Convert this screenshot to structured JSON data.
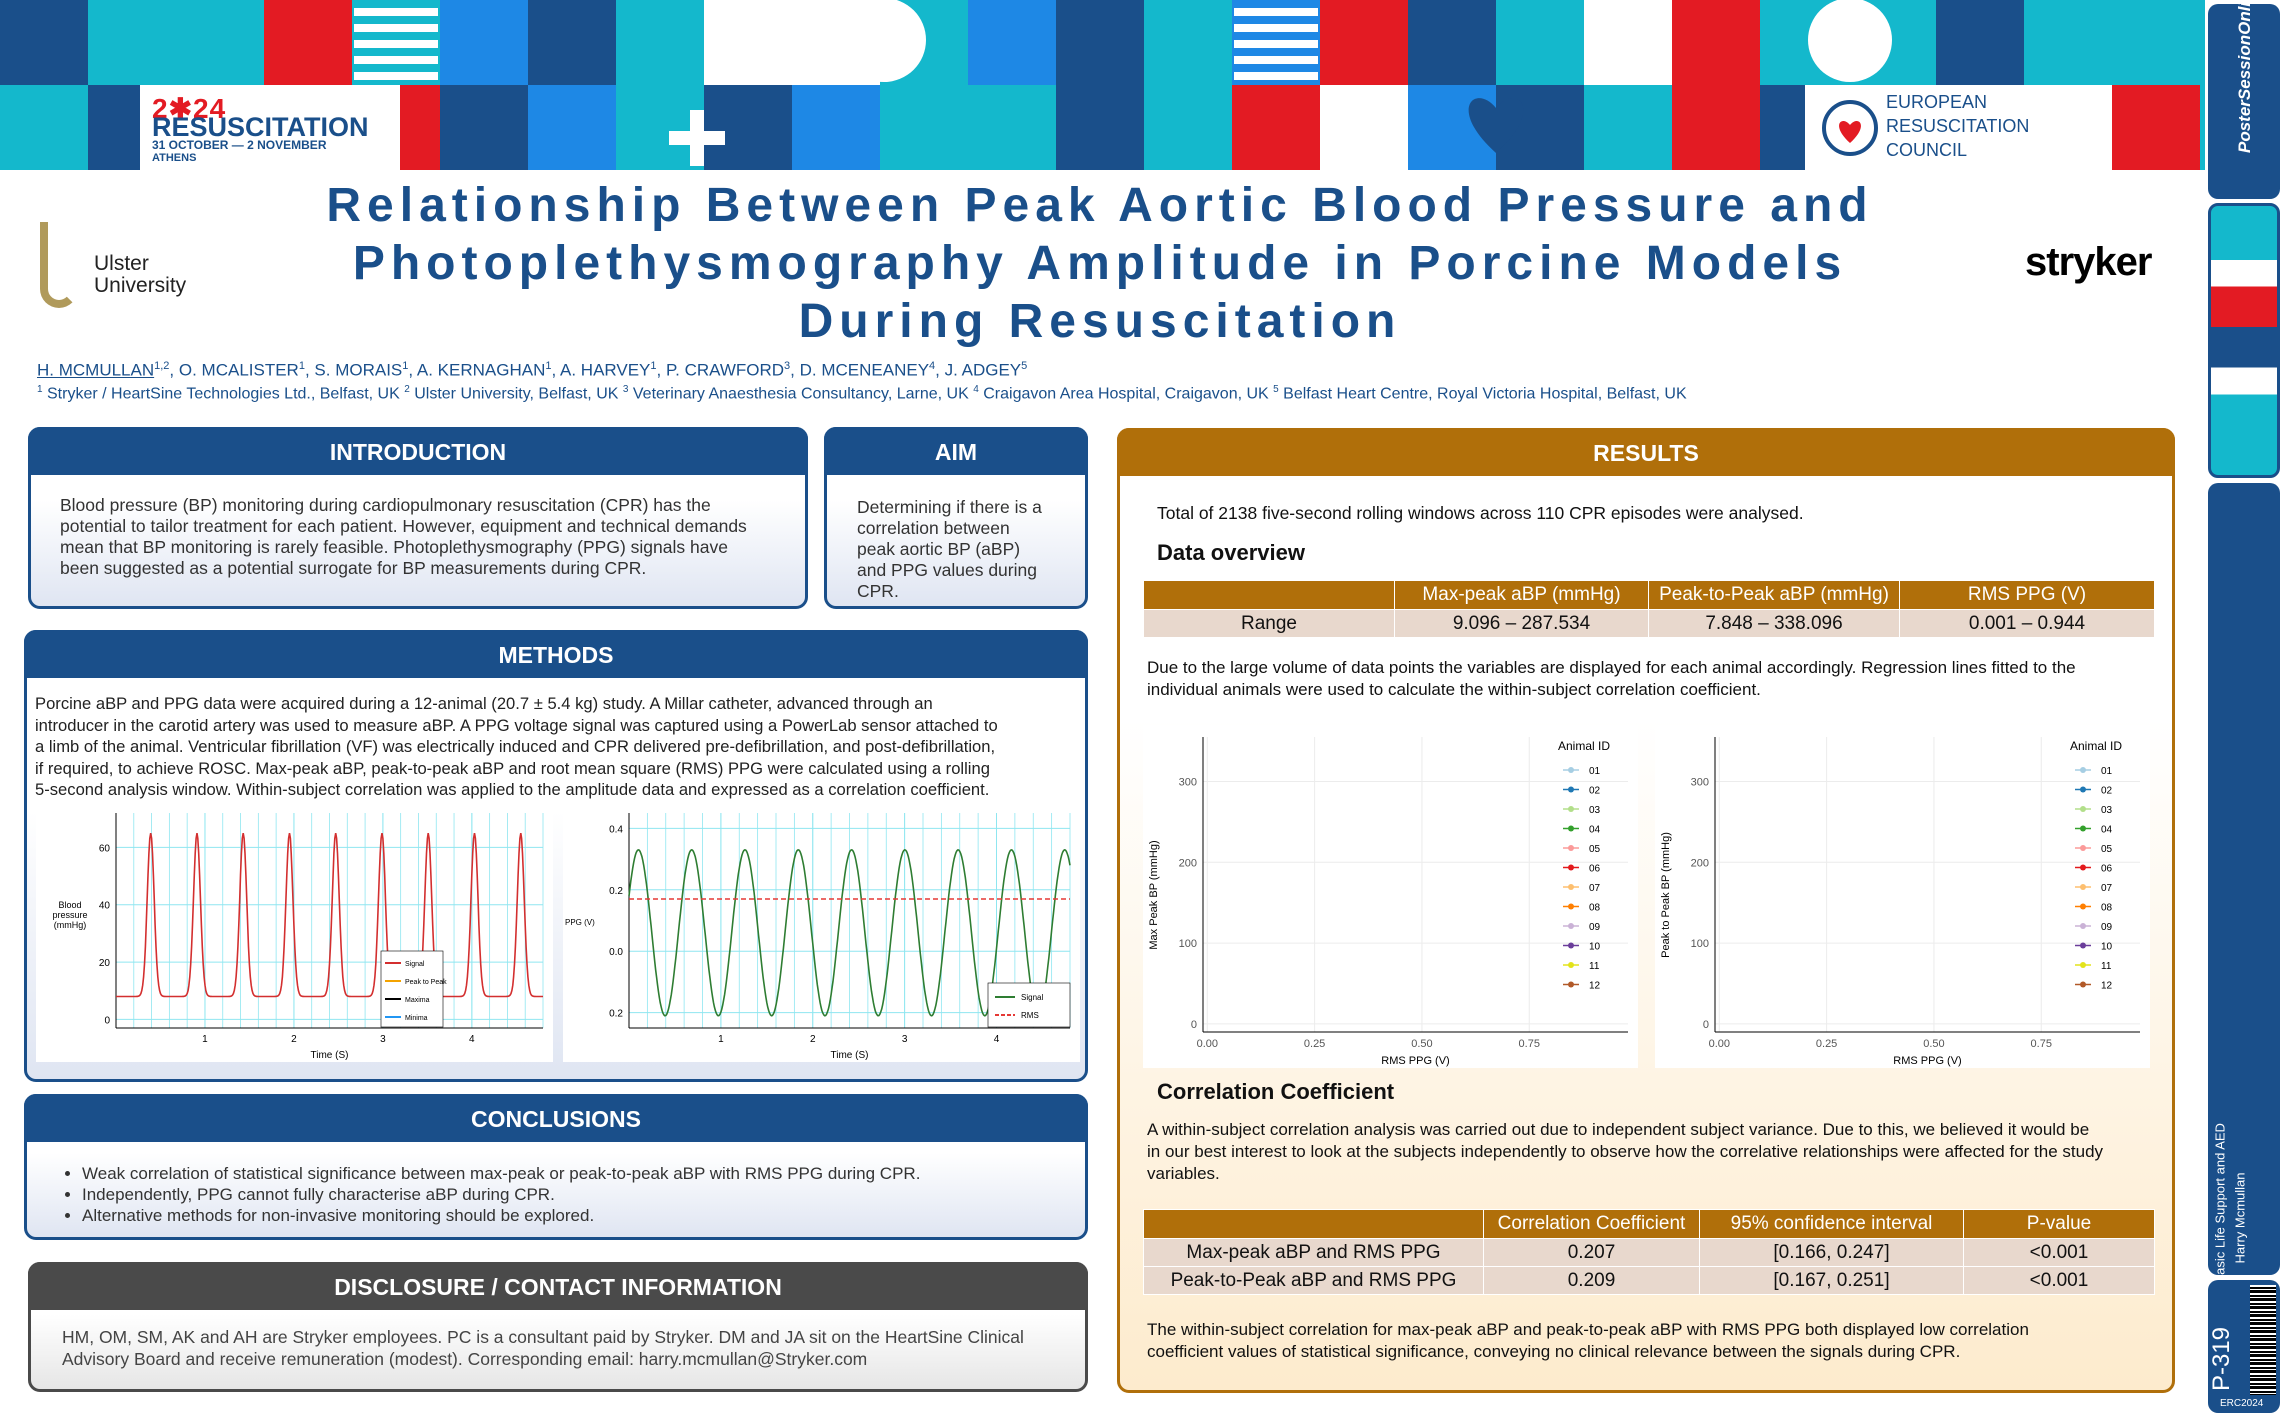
{
  "banner": {
    "event_year": "2✱24",
    "event_name": "RESUSCITATION",
    "event_dates": "31 OCTOBER — 2 NOVEMBER",
    "event_city": "ATHENS",
    "org_name": [
      "EUROPEAN",
      "RESUSCITATION",
      "COUNCIL"
    ]
  },
  "header": {
    "title_lines": [
      "Relationship Between Peak Aortic Blood Pressure and",
      "Photoplethysmography Amplitude in Porcine Models",
      "During Resuscitation"
    ],
    "left_logo": [
      "Ulster",
      "University"
    ],
    "right_logo": "stryker",
    "authors": [
      {
        "text": "H. MCMULLAN",
        "sup": "1,2"
      },
      {
        "text": ", O. MCALISTER",
        "sup": "1"
      },
      {
        "text": ", S. MORAIS",
        "sup": "1"
      },
      {
        "text": ", A. KERNAGHAN",
        "sup": "1"
      },
      {
        "text": ", A. HARVEY",
        "sup": "1"
      },
      {
        "text": ", P. CRAWFORD",
        "sup": "3"
      },
      {
        "text": ", D. MCENEANEY",
        "sup": "4"
      },
      {
        "text": ", J. ADGEY",
        "sup": "5"
      }
    ],
    "affiliations": [
      {
        "sup": "1",
        "text": " Stryker / HeartSine Technologies Ltd., Belfast, UK "
      },
      {
        "sup": "2",
        "text": " Ulster University, Belfast, UK "
      },
      {
        "sup": "3",
        "text": " Veterinary Anaesthesia Consultancy, Larne, UK "
      },
      {
        "sup": "4",
        "text": " Craigavon Area Hospital, Craigavon, UK "
      },
      {
        "sup": "5",
        "text": " Belfast Heart Centre, Royal Victoria Hospital, Belfast, UK"
      }
    ]
  },
  "sidebar": {
    "site": "PosterSessionOnline",
    "topic": "Basic Life Support and AED",
    "presenter": "Harry Mcmullan",
    "poster_id": "P-319",
    "event_code": "ERC2024"
  },
  "introduction": {
    "heading": "INTRODUCTION",
    "lines": [
      "Blood pressure (BP) monitoring during cardiopulmonary resuscitation (CPR) has the",
      "potential to tailor treatment for each patient. However, equipment and technical demands",
      "mean that BP monitoring is rarely feasible. Photoplethysmography (PPG) signals have",
      "been suggested as a potential surrogate for BP measurements during CPR."
    ]
  },
  "aim": {
    "heading": "AIM",
    "lines": [
      "Determining if there is a",
      "correlation between",
      "peak aortic BP (aBP)",
      "and PPG values during",
      "CPR."
    ]
  },
  "methods": {
    "heading": "METHODS",
    "lines": [
      "Porcine aBP and PPG data were acquired during a 12-animal (20.7 ± 5.4 kg) study. A Millar catheter, advanced through an",
      "introducer in the carotid artery was used to measure aBP. A PPG voltage signal was captured using a PowerLab sensor attached to",
      "a limb of the animal. Ventricular fibrillation (VF) was electrically induced and CPR delivered pre-defibrillation, and post-defibrillation,",
      "if required, to achieve ROSC. Max-peak aBP, peak-to-peak aBP and root mean square (RMS) PPG were calculated using a rolling",
      "5-second analysis window. Within-subject correlation was applied to the amplitude data and expressed as a correlation coefficient."
    ],
    "bp_plot": {
      "ylabel": "Blood pressure (mmHg)",
      "xlabel": "Time (S)",
      "ylim": [
        -3,
        72
      ],
      "yticks": [
        0,
        20,
        40,
        60
      ],
      "xlim": [
        0,
        4.8
      ],
      "xticks": [
        1,
        2,
        3,
        4
      ],
      "grid": true,
      "legend": [
        "Signal",
        "Peak to Peak",
        "Maxima",
        "Minima"
      ]
    },
    "ppg_plot": {
      "ylabel": "PPG (V)",
      "xlabel": "Time (S)",
      "ylim": [
        -0.25,
        0.45
      ],
      "yticks": [
        {
          "value": -0.2,
          "label": "0.2"
        },
        {
          "value": 0,
          "label": "0.0"
        },
        0.2,
        0.4
      ],
      "xlim": [
        0,
        4.8
      ],
      "xticks": [
        1,
        2,
        3,
        4
      ],
      "grid": true,
      "legend": [
        "Signal",
        "RMS"
      ]
    }
  },
  "conclusions": {
    "heading": "CONCLUSIONS",
    "bullets": [
      "Weak correlation of statistical significance between max-peak or peak-to-peak aBP with RMS PPG during CPR.",
      "Independently, PPG cannot fully characterise aBP during CPR.",
      "Alternative methods for non-invasive monitoring should be explored."
    ]
  },
  "disclosure": {
    "heading": "DISCLOSURE / CONTACT INFORMATION",
    "lines": [
      "HM, OM, SM, AK and AH are Stryker employees. PC is a consultant paid by Stryker. DM and JA sit on the HeartSine Clinical",
      "Advisory Board and receive remuneration (modest). Corresponding email: harry.mcmullan@Stryker.com"
    ]
  },
  "results": {
    "heading": "RESULTS",
    "intro": "Total of 2138 five-second rolling windows across 110 CPR episodes were analysed.",
    "overview_heading": "Data overview",
    "range_table": {
      "columns": [
        "Max-peak aBP (mmHg)",
        "Peak-to-Peak aBP (mmHg)",
        "RMS PPG (V)"
      ],
      "rows": [
        {
          "label": "Range",
          "cells": [
            "9.096 – 287.534",
            "7.848 – 338.096",
            "0.001 – 0.944"
          ]
        }
      ]
    },
    "overview_lines": [
      "Due to the large volume of data points the variables are displayed for each animal accordingly. Regression lines fitted to the",
      "individual animals were used to calculate the within-subject correlation coefficient."
    ],
    "scatter_plots": [
      {
        "ylabel": "Max Peak BP (mmHg)",
        "xlabel": "RMS PPG (V)",
        "xlim": [
          -0.01,
          0.98
        ],
        "xticks": [
          {
            "value": 0,
            "label": "0.00"
          },
          0.25,
          {
            "value": 0.5,
            "label": "0.50"
          },
          0.75
        ],
        "ylim": [
          -10,
          355
        ],
        "yticks": [
          0,
          100,
          200,
          300
        ],
        "grid": true,
        "legend_title": "Animal ID"
      },
      {
        "ylabel": "Peak to Peak BP (mmHg)",
        "xlabel": "RMS PPG (V)",
        "xlim": [
          -0.01,
          0.98
        ],
        "xticks": [
          {
            "value": 0,
            "label": "0.00"
          },
          0.25,
          {
            "value": 0.5,
            "label": "0.50"
          },
          0.75
        ],
        "ylim": [
          -10,
          355
        ],
        "yticks": [
          0,
          100,
          200,
          300
        ],
        "grid": true,
        "legend_title": "Animal ID"
      }
    ],
    "animals": [
      {
        "name": "01",
        "color": "#a6cee3"
      },
      {
        "name": "02",
        "color": "#1f78b4"
      },
      {
        "name": "03",
        "color": "#b2df8a"
      },
      {
        "name": "04",
        "color": "#33a02c"
      },
      {
        "name": "05",
        "color": "#fb9a99"
      },
      {
        "name": "06",
        "color": "#e31a1c"
      },
      {
        "name": "07",
        "color": "#fdbf6f"
      },
      {
        "name": "08",
        "color": "#ff7f00"
      },
      {
        "name": "09",
        "color": "#cab2d6"
      },
      {
        "name": "10",
        "color": "#6a3d9a"
      },
      {
        "name": "11",
        "color": "#e3e31a"
      },
      {
        "name": "12",
        "color": "#b15928"
      }
    ],
    "correlation_heading": "Correlation Coefficient",
    "correlation_lines": [
      "A within-subject correlation analysis was carried out due to independent subject variance. Due to this, we believed it would be",
      "in our best interest to look at the subjects independently to observe how the correlative relationships were affected for the study",
      "variables."
    ],
    "correlation_table": {
      "columns": [
        "Correlation Coefficient",
        "95% confidence interval",
        "P-value"
      ],
      "rows": [
        {
          "label": "Max-peak aBP and RMS PPG",
          "cells": [
            0.207,
            "[0.166, 0.247]",
            "<0.001"
          ]
        },
        {
          "label": "Peak-to-Peak aBP and RMS PPG",
          "cells": [
            0.209,
            "[0.167, 0.251]",
            "<0.001"
          ]
        }
      ]
    },
    "conclusion_lines": [
      "The within-subject correlation for max-peak aBP and peak-to-peak aBP with RMS PPG both displayed low correlation",
      "coefficient values of statistical significance, conveying no clinical relevance between the signals during CPR."
    ]
  }
}
